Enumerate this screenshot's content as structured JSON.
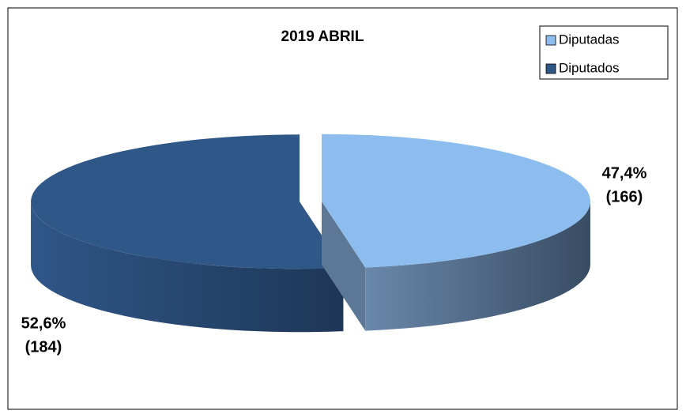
{
  "chart_data": {
    "type": "pie",
    "title": "2019 ABRIL",
    "categories": [
      "Diputadas",
      "Diputados"
    ],
    "values": [
      47.4,
      52.6
    ],
    "value_labels": [
      "47,4%",
      "52,6%"
    ],
    "counts": [
      166,
      184
    ],
    "count_labels": [
      "(166)",
      "(184)"
    ],
    "colors": [
      "#8DBDEE",
      "#2F5788"
    ],
    "legend": "upper right",
    "three_d": true
  }
}
